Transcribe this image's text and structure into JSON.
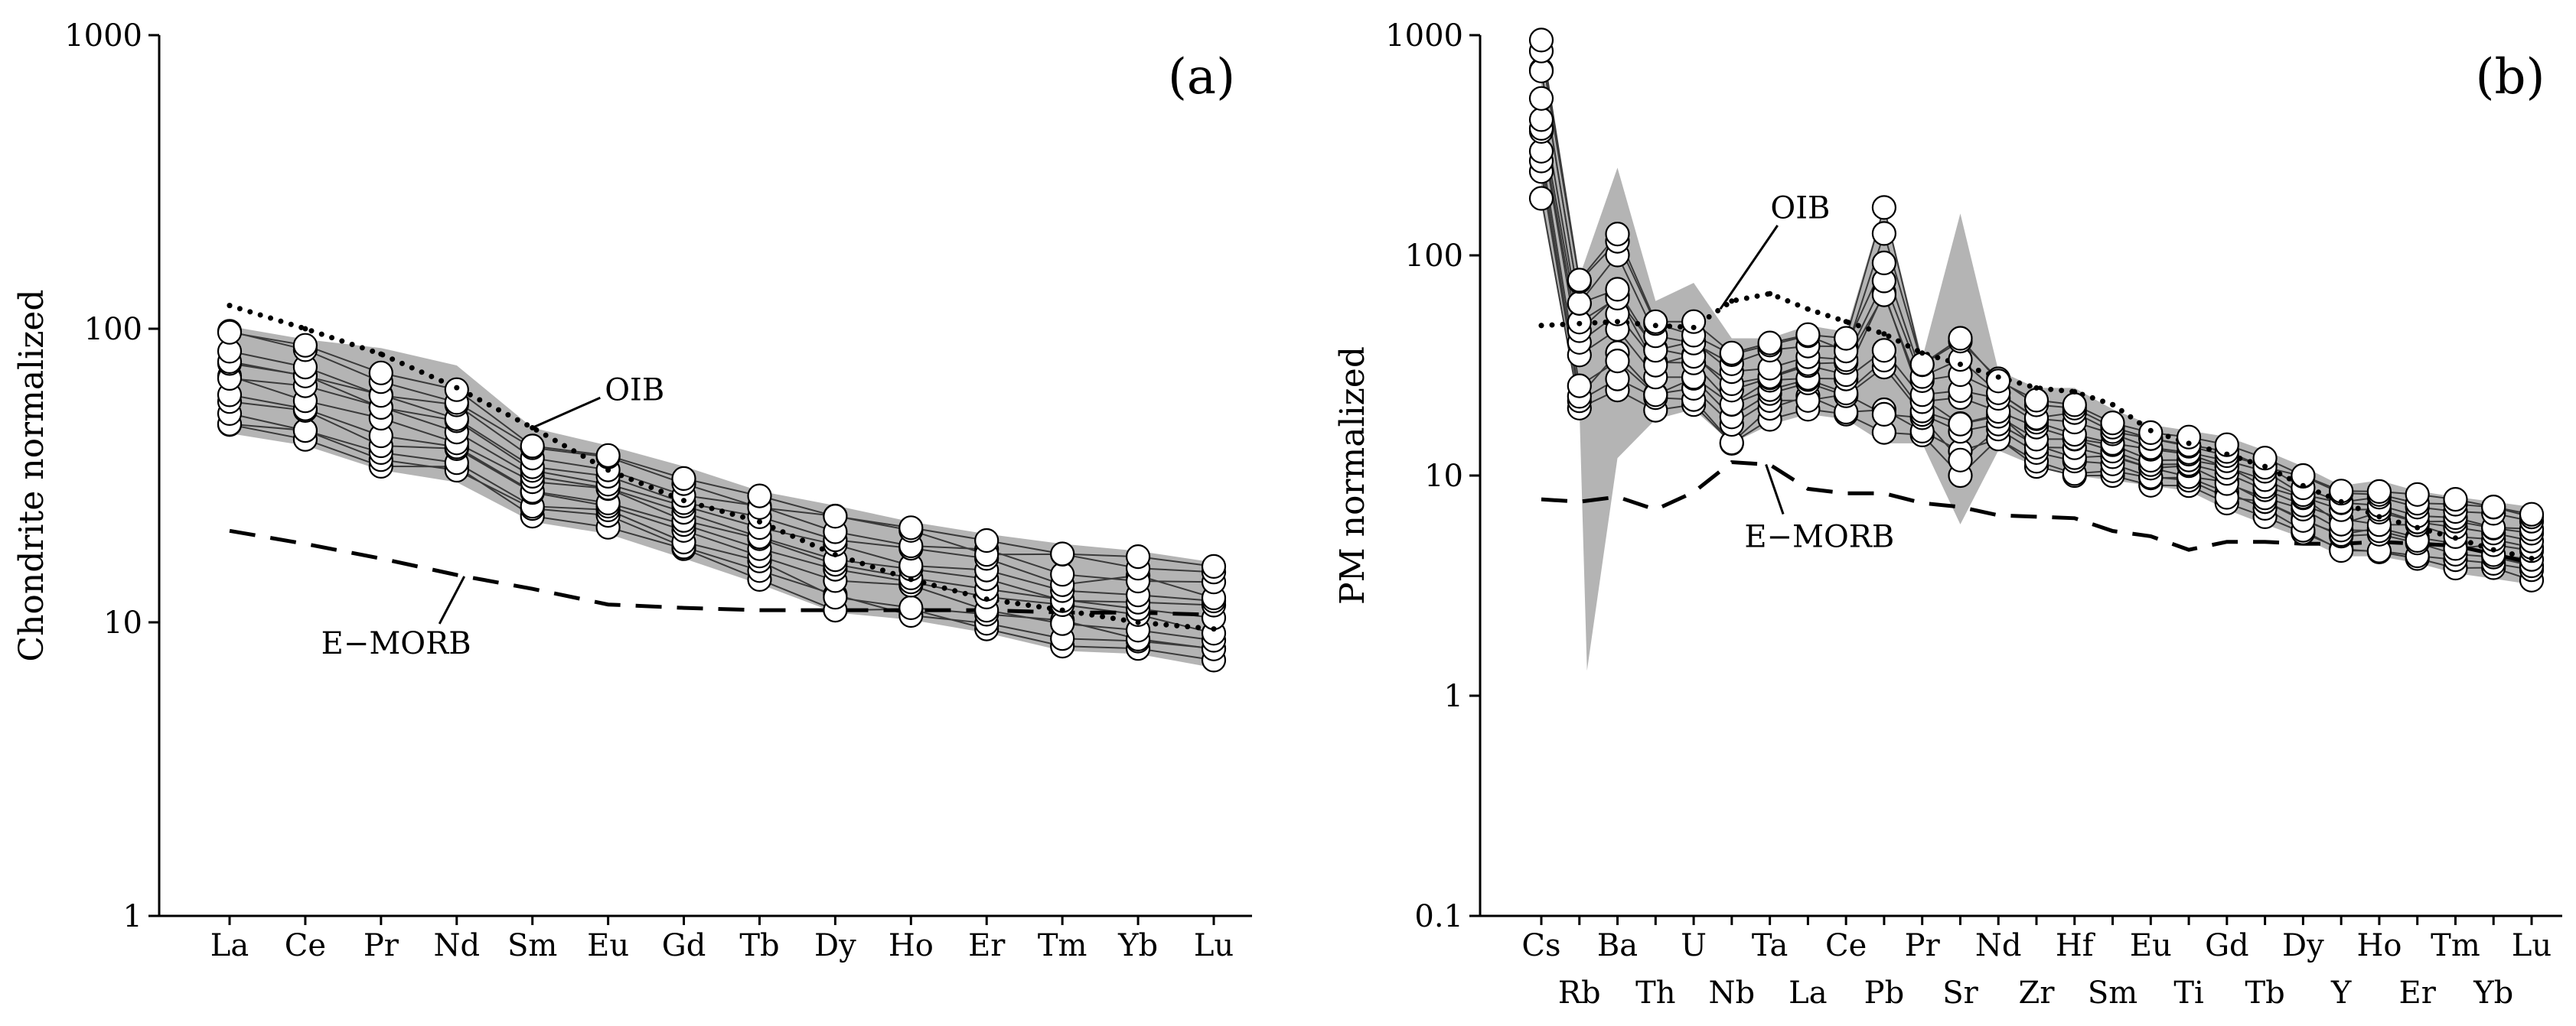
{
  "figure": {
    "colors": {
      "envelope": "#b4b4b4",
      "sample_line": "#3a3a3a",
      "marker_fill": "#ffffff",
      "ink": "#000000"
    }
  },
  "chart_data": [
    {
      "id": "a",
      "type": "line",
      "panel_label": "(a)",
      "xlabel": "",
      "ylabel": "Chondrite normalized",
      "yscale": "log",
      "ylim": [
        1,
        1000
      ],
      "yticks": [
        1,
        10,
        100,
        1000
      ],
      "ytick_labels": [
        "1",
        "10",
        "100",
        "1000"
      ],
      "categories": [
        "La",
        "Ce",
        "Pr",
        "Nd",
        "Sm",
        "Eu",
        "Gd",
        "Tb",
        "Dy",
        "Ho",
        "Er",
        "Tm",
        "Yb",
        "Lu"
      ],
      "category_rows": [
        0,
        0,
        0,
        0,
        0,
        0,
        0,
        0,
        0,
        0,
        0,
        0,
        0,
        0
      ],
      "samples_low": [
        46,
        42,
        34,
        32,
        23,
        21,
        17,
        14,
        11,
        10.5,
        9.5,
        8.3,
        8.0,
        7.2
      ],
      "samples_high": [
        100,
        88,
        71,
        62,
        41,
        37,
        32,
        27,
        23.5,
        21,
        19,
        17.5,
        16.8,
        15.5
      ],
      "envelope_low": [
        44,
        40,
        33,
        30,
        22,
        20,
        16.5,
        13.5,
        10.8,
        10.2,
        9.2,
        8.0,
        7.8,
        7.0
      ],
      "envelope_high": [
        102,
        92,
        86,
        75,
        46,
        40,
        34,
        28,
        25,
        22,
        20,
        18.5,
        17.5,
        16
      ],
      "series": [
        {
          "name": "OIB",
          "style": "dotted",
          "values": [
            120,
            100,
            82,
            63,
            46,
            33,
            26,
            22,
            17,
            14,
            12,
            11,
            10,
            9.5
          ]
        },
        {
          "name": "E-MORB",
          "style": "dashed",
          "values": [
            20.5,
            18.5,
            16.5,
            14.5,
            13,
            11.5,
            11.2,
            11,
            11,
            11,
            11,
            10.8,
            10.8,
            10.6
          ]
        }
      ],
      "annotations": [
        {
          "text": "OIB",
          "target_series": "OIB",
          "target_index": 4,
          "label_value": 62,
          "label_index": 5.35
        },
        {
          "text": "E−MORB",
          "target_series": "E-MORB",
          "target_index": 3.1,
          "label_value": 8.5,
          "label_index": 2.2
        }
      ]
    },
    {
      "id": "b",
      "type": "line",
      "panel_label": "(b)",
      "xlabel": "",
      "ylabel": "PM normalized",
      "yscale": "log",
      "ylim": [
        0.1,
        1000
      ],
      "yticks": [
        0.1,
        1,
        10,
        100,
        1000
      ],
      "ytick_labels": [
        "0.1",
        "1",
        "10",
        "100",
        "1000"
      ],
      "categories": [
        "Cs",
        "Rb",
        "Ba",
        "Th",
        "U",
        "Nb",
        "Ta",
        "La",
        "Ce",
        "Pb",
        "Pr",
        "Sr",
        "Nd",
        "Zr",
        "Hf",
        "Sm",
        "Eu",
        "Ti",
        "Gd",
        "Tb",
        "Dy",
        "Y",
        "Ho",
        "Er",
        "Tm",
        "Yb",
        "Lu"
      ],
      "category_rows": [
        0,
        1,
        0,
        1,
        0,
        1,
        0,
        1,
        0,
        1,
        0,
        1,
        0,
        1,
        0,
        1,
        0,
        1,
        0,
        1,
        0,
        1,
        0,
        1,
        0,
        1,
        0
      ],
      "samples_low": [
        180,
        18,
        24,
        19,
        21,
        14,
        18,
        20,
        19,
        15,
        15,
        10,
        14,
        11,
        10,
        10,
        9,
        9,
        7.5,
        6.5,
        5.5,
        4.5,
        4.5,
        4.2,
        3.8,
        3.6,
        3.3
      ],
      "samples_high": [
        950,
        85,
        125,
        52,
        50,
        36,
        40,
        45,
        42,
        165,
        32,
        42,
        28,
        22,
        22,
        18,
        16,
        15,
        14,
        12,
        10,
        8.5,
        9,
        8.2,
        7.8,
        7.2,
        7.0
      ],
      "envelope_low": [
        170,
        20,
        12,
        18,
        20,
        14,
        17,
        19,
        18,
        14,
        14,
        6,
        13,
        11,
        10,
        9.5,
        9,
        8.5,
        7,
        6,
        5.2,
        4.3,
        4.3,
        4.0,
        3.6,
        3.4,
        3.2
      ],
      "envelope_high": [
        950,
        80,
        250,
        62,
        75,
        42,
        42,
        48,
        45,
        170,
        34,
        155,
        30,
        25,
        25,
        20,
        17,
        16,
        15,
        13,
        11,
        9,
        9.5,
        8.5,
        8.0,
        7.6,
        7.2
      ],
      "envelope_spike": {
        "index": 1.2,
        "value": 1.3
      },
      "series": [
        {
          "name": "OIB",
          "style": "dotted",
          "values": [
            48,
            49,
            50,
            48,
            47,
            62,
            67,
            57,
            50,
            44,
            36,
            32,
            28,
            25,
            24,
            21,
            16,
            14,
            12.5,
            11,
            9,
            7.6,
            6.5,
            5.8,
            5.2,
            4.6,
            4.2
          ]
        },
        {
          "name": "E-MORB",
          "style": "dashed",
          "values": [
            7.8,
            7.6,
            8.0,
            7.0,
            8.4,
            11.5,
            11.2,
            8.7,
            8.3,
            8.3,
            7.5,
            7.2,
            6.6,
            6.5,
            6.4,
            5.6,
            5.3,
            4.6,
            5.0,
            5.0,
            4.9,
            4.9,
            5.0,
            4.9,
            4.8,
            4.4,
            4.0
          ]
        }
      ],
      "annotations": [
        {
          "text": "OIB",
          "target_series": "OIB",
          "target_index": 4.7,
          "label_value": 165,
          "label_index": 6.8
        },
        {
          "text": "E−MORB",
          "target_series": "E-MORB",
          "target_index": 5.9,
          "label_value": 5.3,
          "label_index": 7.3
        }
      ]
    }
  ]
}
